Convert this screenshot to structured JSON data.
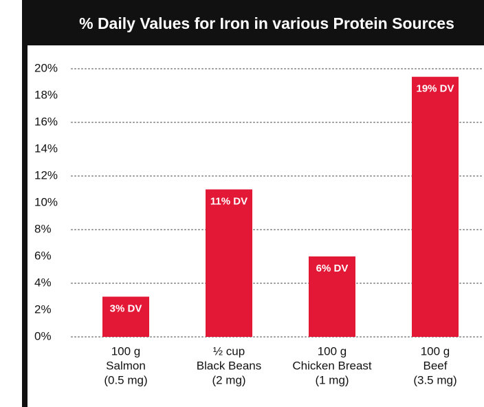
{
  "chart_data": {
    "type": "bar",
    "title": "% Daily Values for Iron in various Protein Sources",
    "categories": [
      [
        "100 g",
        "Salmon",
        "(0.5 mg)"
      ],
      [
        "½ cup",
        "Black Beans",
        "(2 mg)"
      ],
      [
        "100 g",
        "Chicken Breast",
        "(1 mg)"
      ],
      [
        "100 g",
        "Beef",
        "(3.5 mg)"
      ]
    ],
    "values": [
      3,
      11,
      6,
      19.4
    ],
    "value_labels": [
      "3% DV",
      "11% DV",
      "6% DV",
      "19% DV"
    ],
    "color": "#e31837",
    "ylim": [
      0,
      20
    ],
    "yticks": [
      {
        "value": 0,
        "label": "0%"
      },
      {
        "value": 2,
        "label": "2%"
      },
      {
        "value": 4,
        "label": "4%"
      },
      {
        "value": 6,
        "label": "6%"
      },
      {
        "value": 8,
        "label": "8%"
      },
      {
        "value": 10,
        "label": "10%"
      },
      {
        "value": 12,
        "label": "12%"
      },
      {
        "value": 14,
        "label": "14%"
      },
      {
        "value": 16,
        "label": "16%"
      },
      {
        "value": 18,
        "label": "18%"
      },
      {
        "value": 20,
        "label": "20%"
      }
    ],
    "grid": true
  }
}
